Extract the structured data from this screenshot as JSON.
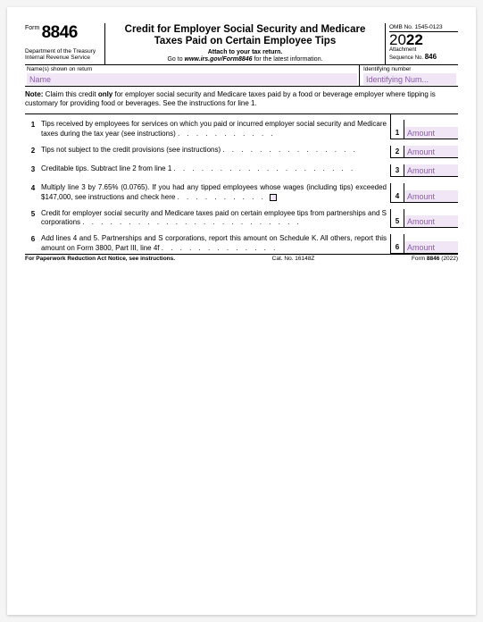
{
  "form_label": "Form",
  "form_number": "8846",
  "dept1": "Department of the Treasury",
  "dept2": "Internal Revenue Service",
  "title": "Credit for Employer Social Security and Medicare Taxes Paid on Certain Employee Tips",
  "attach": "Attach to your tax return.",
  "goto_prefix": "Go to ",
  "goto_url": "www.irs.gov/Form8846",
  "goto_suffix": " for the latest information.",
  "omb": "OMB No. 1545-0123",
  "year_prefix": "20",
  "year_suffix": "22",
  "seq_label1": "Attachment",
  "seq_label2": "Sequence No.",
  "seq_num": "846",
  "name_label": "Name(s) shown on return",
  "name_value": "Name",
  "id_label": "Identifying number",
  "id_value": "Identifying Num...",
  "note_bold": "Note:",
  "note_text1": " Claim this credit ",
  "note_only": "only",
  "note_text2": " for employer social security and Medicare taxes paid by a food or beverage employer where tipping is customary for providing food or beverages. See the instructions for line 1.",
  "lines": {
    "l1": {
      "num": "1",
      "desc": "Tips received by employees for services on which you paid or incurred employer social security and Medicare taxes during the tax year (see instructions)",
      "rnum": "1",
      "amount": "Amount"
    },
    "l2": {
      "num": "2",
      "desc": "Tips not subject to the credit provisions (see instructions)",
      "rnum": "2",
      "amount": "Amount"
    },
    "l3": {
      "num": "3",
      "desc": "Creditable tips. Subtract line 2 from line 1",
      "rnum": "3",
      "amount": "Amount"
    },
    "l4": {
      "num": "4",
      "desc": "Multiply line 3 by 7.65% (0.0765). If you had any tipped employees whose wages (including tips) exceeded $147,000, see instructions and check here",
      "rnum": "4",
      "amount": "Amount"
    },
    "l5": {
      "num": "5",
      "desc": "Credit for employer social security and Medicare taxes paid on certain employee tips from partnerships and S corporations",
      "rnum": "5",
      "amount": "Amount"
    },
    "l6": {
      "num": "6",
      "desc": "Add lines 4 and 5. Partnerships and S corporations, report this amount on Schedule K. All others, report this amount on Form 3800, Part III, line 4f",
      "rnum": "6",
      "amount": "Amount"
    }
  },
  "footer_left": "For Paperwork Reduction Act Notice, see instructions.",
  "footer_cat": "Cat. No. 16148Z",
  "footer_form1": "Form ",
  "footer_form2": "8846",
  "footer_form3": " (2022)",
  "colors": {
    "input_bg": "#f0e6f5",
    "input_text": "#8a5fa8"
  }
}
